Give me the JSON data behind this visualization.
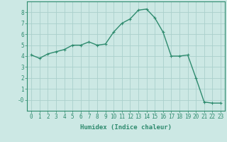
{
  "x": [
    0,
    1,
    2,
    3,
    4,
    5,
    6,
    7,
    8,
    9,
    10,
    11,
    12,
    13,
    14,
    15,
    16,
    17,
    18,
    19,
    20,
    21,
    22,
    23
  ],
  "y": [
    4.1,
    3.8,
    4.2,
    4.4,
    4.6,
    5.0,
    5.0,
    5.3,
    5.0,
    5.1,
    6.2,
    7.0,
    7.4,
    8.2,
    8.3,
    7.5,
    6.2,
    4.0,
    4.0,
    4.1,
    2.0,
    -0.2,
    -0.3,
    -0.3
  ],
  "line_color": "#2e8b6e",
  "marker": "+",
  "marker_size": 3,
  "line_width": 1.0,
  "bg_color": "#cce8e4",
  "grid_color": "#aad0cc",
  "xlabel": "Humidex (Indice chaleur)",
  "xlim": [
    -0.5,
    23.5
  ],
  "ylim": [
    -1.0,
    9.0
  ],
  "yticks": [
    0,
    1,
    2,
    3,
    4,
    5,
    6,
    7,
    8
  ],
  "ytick_labels": [
    "-0",
    "1",
    "2",
    "3",
    "4",
    "5",
    "6",
    "7",
    "8"
  ],
  "xticks": [
    0,
    1,
    2,
    3,
    4,
    5,
    6,
    7,
    8,
    9,
    10,
    11,
    12,
    13,
    14,
    15,
    16,
    17,
    18,
    19,
    20,
    21,
    22,
    23
  ],
  "xlabel_fontsize": 6.5,
  "tick_fontsize": 5.5
}
